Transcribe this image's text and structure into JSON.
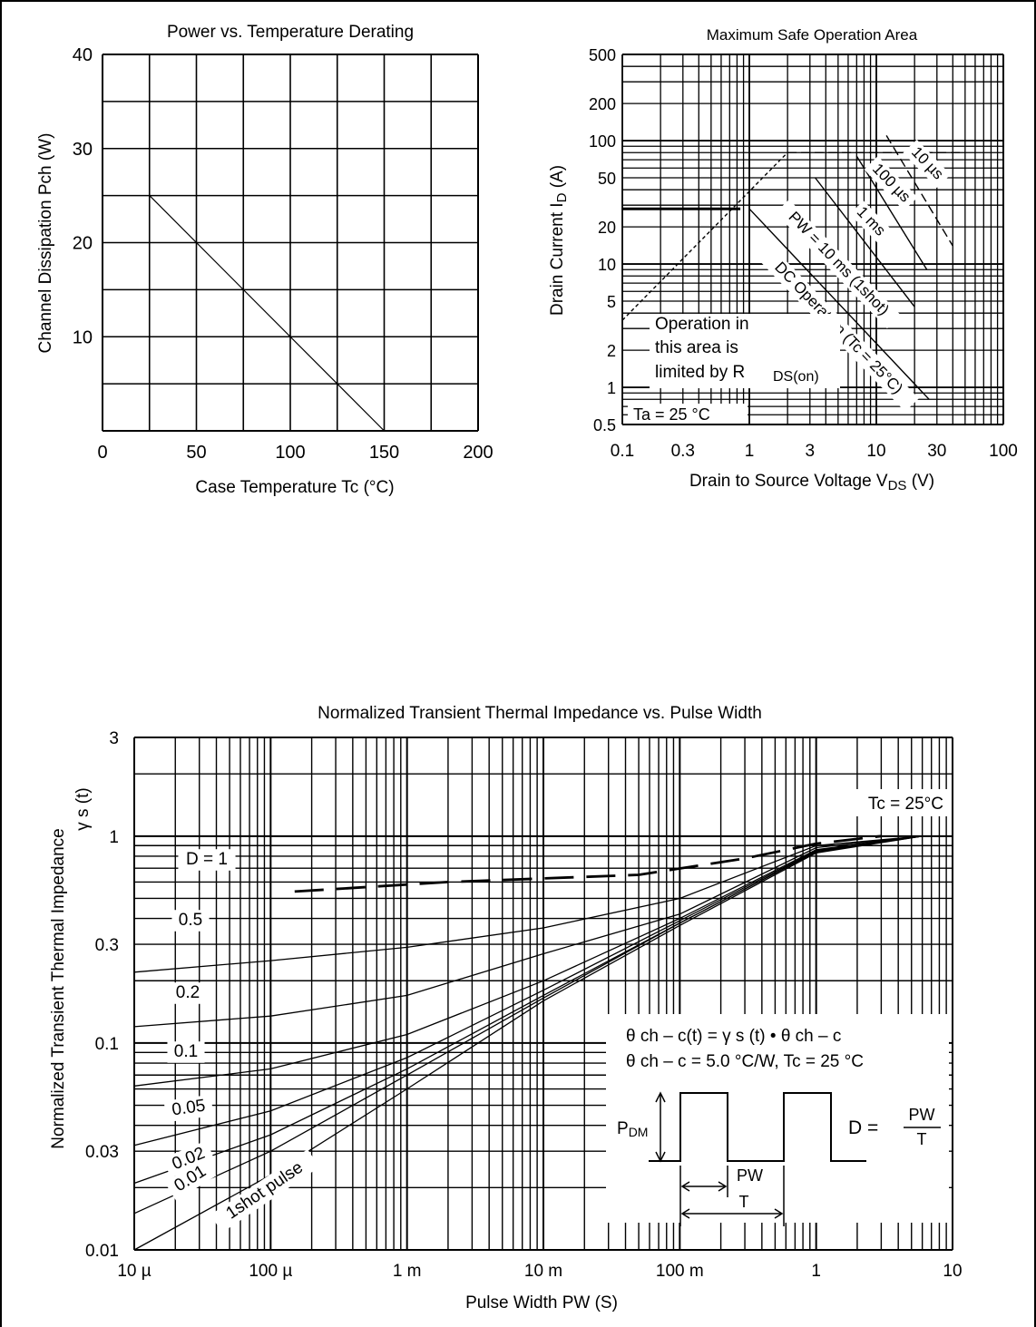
{
  "chart_data": [
    {
      "type": "line",
      "title": "Power vs. Temperature Derating",
      "xlabel": "Case Temperature    Tc  (°C)",
      "ylabel": "Channel Dissipation    Pch  (W)",
      "xlim": [
        0,
        200
      ],
      "ylim": [
        0,
        40
      ],
      "x_ticks": [
        "0",
        "50",
        "100",
        "150",
        "200"
      ],
      "y_ticks": [
        "10",
        "20",
        "30",
        "40"
      ],
      "grid": true,
      "series": [
        {
          "x": [
            25,
            150
          ],
          "y": [
            25,
            0
          ]
        }
      ]
    },
    {
      "type": "line",
      "title": "Maximum Safe Operation Area",
      "xlabel": "Drain to Source Voltage    V",
      "xlabel_sub": "DS",
      "xlabel_unit": "(V)",
      "ylabel": "Drain Current    I",
      "ylabel_sub": "D",
      "ylabel_unit": "(A)",
      "x_scale": "log",
      "y_scale": "log",
      "xlim": [
        0.1,
        100
      ],
      "ylim": [
        0.5,
        500
      ],
      "x_ticks": [
        "0.1",
        "0.3",
        "1",
        "3",
        "10",
        "30",
        "100"
      ],
      "y_ticks": [
        "0.5",
        "1",
        "2",
        "5",
        "10",
        "20",
        "50",
        "100",
        "200",
        "500"
      ],
      "grid": true,
      "series": [
        {
          "x": [
            0.1,
            0.85
          ],
          "y": [
            28,
            28
          ]
        },
        {
          "x": [
            0.1,
            2.0
          ],
          "y": [
            3.5,
            80
          ]
        },
        {
          "x": [
            2.0,
            50
          ],
          "y": [
            80,
            80
          ]
        },
        {
          "x": [
            12,
            40
          ],
          "y": [
            110,
            14
          ]
        },
        {
          "x": [
            7,
            25
          ],
          "y": [
            75,
            9
          ]
        },
        {
          "x": [
            3.3,
            20
          ],
          "y": [
            50,
            4.5
          ]
        },
        {
          "x": [
            1.0,
            26
          ],
          "y": [
            28,
            0.8
          ]
        }
      ],
      "annotations": [
        {
          "text": "10 µs",
          "x": 25,
          "y": 65
        },
        {
          "text": "100 µs",
          "x": 13,
          "y": 45
        },
        {
          "text": "1 ms",
          "x": 9,
          "y": 22
        },
        {
          "text": "PW = 10 ms (1shot)",
          "x": 5,
          "y": 10
        },
        {
          "text": "DC Operation (Tc = 25°C)",
          "x": 5,
          "y": 3
        },
        {
          "text": "Operation in",
          "x": 0.12,
          "y": 3.6
        },
        {
          "text": "this area is",
          "x": 0.12,
          "y": 2.3
        },
        {
          "text": "limited by R",
          "x": 0.12,
          "y": 1.5
        },
        {
          "text": "DS(on)",
          "x": 0.8,
          "y": 1.4
        },
        {
          "text": "Ta = 25 °C",
          "x": 0.105,
          "y": 0.62
        }
      ]
    },
    {
      "type": "line",
      "title": "Normalized Transient Thermal Impedance vs. Pulse Width",
      "xlabel": "Pulse Width     PW     (S)",
      "ylabel": "Normalized Transient Thermal Impedance",
      "ylabel2": "γ s  (t)",
      "x_scale": "log",
      "y_scale": "log",
      "xlim": [
        1e-05,
        10
      ],
      "ylim": [
        0.01,
        3
      ],
      "x_ticks": [
        "10 µ",
        "100 µ",
        "1 m",
        "10 m",
        "100 m",
        "1",
        "10"
      ],
      "y_ticks": [
        "0.01",
        "0.03",
        "0.1",
        "0.3",
        "1",
        "3"
      ],
      "grid": true,
      "series": [
        {
          "name": "D = 1",
          "x": [
            0.00015,
            0.002,
            0.05,
            0.3,
            1,
            3
          ],
          "y": [
            0.54,
            0.6,
            0.65,
            0.78,
            0.92,
            1.0
          ]
        },
        {
          "name": "0.5",
          "x": [
            1e-05,
            0.0001,
            0.001,
            0.01,
            0.1,
            1,
            6
          ],
          "y": [
            0.22,
            0.25,
            0.29,
            0.36,
            0.5,
            0.9,
            1.0
          ]
        },
        {
          "name": "0.2",
          "x": [
            1e-05,
            0.0001,
            0.001,
            0.01,
            0.1,
            1,
            6
          ],
          "y": [
            0.12,
            0.135,
            0.17,
            0.27,
            0.42,
            0.88,
            1.0
          ]
        },
        {
          "name": "0.1",
          "x": [
            1e-05,
            0.0001,
            0.001,
            0.01,
            0.1,
            1,
            6
          ],
          "y": [
            0.062,
            0.075,
            0.11,
            0.2,
            0.4,
            0.86,
            1.0
          ]
        },
        {
          "name": "0.05",
          "x": [
            1e-05,
            0.0001,
            0.001,
            0.01,
            0.1,
            1,
            6
          ],
          "y": [
            0.032,
            0.047,
            0.085,
            0.18,
            0.39,
            0.85,
            1.0
          ]
        },
        {
          "name": "0.02",
          "x": [
            1e-05,
            0.0001,
            0.001,
            0.01,
            0.1,
            1,
            6
          ],
          "y": [
            0.021,
            0.036,
            0.075,
            0.17,
            0.38,
            0.84,
            1.0
          ]
        },
        {
          "name": "0.01",
          "x": [
            1e-05,
            0.0001,
            0.001,
            0.01,
            0.1,
            1,
            6
          ],
          "y": [
            0.015,
            0.03,
            0.07,
            0.165,
            0.38,
            0.84,
            1.0
          ]
        },
        {
          "name": "1shot pulse",
          "x": [
            1e-05,
            0.0001,
            0.001,
            0.01,
            0.1,
            1,
            6
          ],
          "y": [
            0.01,
            0.023,
            0.06,
            0.16,
            0.37,
            0.83,
            1.0
          ]
        }
      ],
      "curve_labels": [
        "D = 1",
        "0.5",
        "0.2",
        "0.1",
        "0.05",
        "0.02",
        "0.01",
        "1shot pulse"
      ],
      "annotations": {
        "tc": "Tc = 25°C",
        "formula1": "θ ch – c(t) = γ s (t) • θ ch – c",
        "formula2": "θ ch – c = 5.0 °C/W, Tc = 25 °C",
        "pdm": "P",
        "pdm_sub": "DM",
        "pw": "PW",
        "t": "T",
        "d_eq": "D =",
        "d_num": "PW",
        "d_den": "T"
      }
    }
  ]
}
